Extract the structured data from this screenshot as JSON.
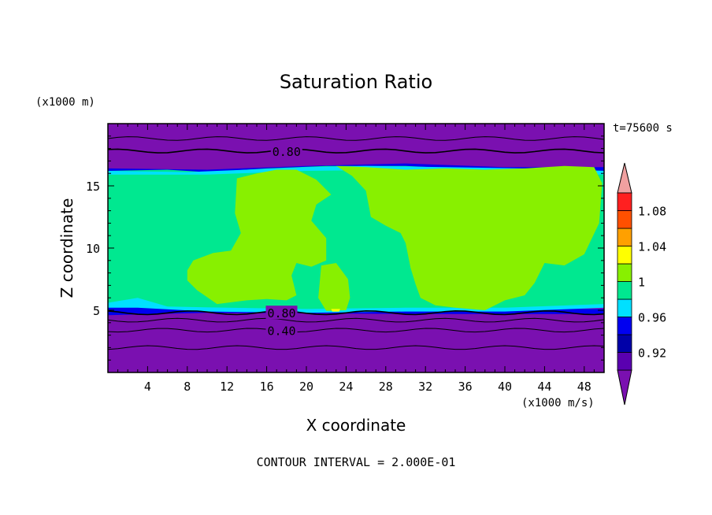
{
  "chart_data": {
    "type": "contour",
    "title": "Saturation Ratio",
    "xlabel": "X coordinate",
    "ylabel": "Z coordinate",
    "x_unit": "(x1000 m/s)",
    "y_unit": "(x1000 m)",
    "time_label": "t=75600 s",
    "footer": "CONTOUR INTERVAL = 2.000E-01",
    "xlim": [
      0,
      50
    ],
    "ylim": [
      0,
      20
    ],
    "x_ticks": [
      "4",
      "8",
      "12",
      "16",
      "20",
      "24",
      "28",
      "32",
      "36",
      "40",
      "44",
      "48"
    ],
    "x_tick_values": [
      4,
      8,
      12,
      16,
      20,
      24,
      28,
      32,
      36,
      40,
      44,
      48
    ],
    "y_ticks": [
      "5",
      "10",
      "15"
    ],
    "y_tick_values": [
      5,
      10,
      15
    ],
    "contour_labels": [
      {
        "text": "0.80",
        "x": 18,
        "y": 17.8
      },
      {
        "text": "0.80",
        "x": 17.5,
        "y": 4.8
      },
      {
        "text": "0.40",
        "x": 17.5,
        "y": 3.4
      }
    ],
    "colorbar": {
      "levels": [
        0.9,
        0.92,
        0.94,
        0.96,
        0.98,
        1.0,
        1.02,
        1.04,
        1.06,
        1.08,
        1.1
      ],
      "tick_labels": [
        "0.92",
        "0.96",
        "1",
        "1.04",
        "1.08"
      ],
      "tick_values": [
        0.92,
        0.96,
        1.0,
        1.04,
        1.08
      ],
      "colors": [
        "#5a00b0",
        "#0000a8",
        "#0000f0",
        "#00e0ff",
        "#00e890",
        "#88f000",
        "#ffff00",
        "#ffa000",
        "#ff5000",
        "#ff2020"
      ],
      "under_color": "#7a10b0",
      "over_color": "#f0a0a0"
    },
    "colors": {
      "low": "#7a10b0",
      "mid": "#00e890",
      "high": "#88f000",
      "edge": "#00e0ff",
      "deep": "#0000f0"
    }
  }
}
